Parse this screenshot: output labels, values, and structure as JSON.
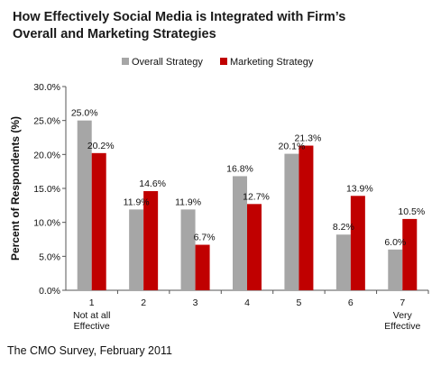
{
  "title_line1": "How Effectively Social Media is Integrated with Firm’s",
  "title_line2": "Overall and Marketing Strategies",
  "source": "The CMO Survey, February 2011",
  "colors": {
    "overall": "#a6a6a6",
    "marketing": "#c00000",
    "border": "#555555"
  },
  "chart_data": {
    "type": "bar",
    "title": "How Effectively Social Media is Integrated with Firm’s Overall and Marketing Strategies",
    "categories": [
      "1",
      "2",
      "3",
      "4",
      "5",
      "6",
      "7"
    ],
    "category_sublabels": [
      [
        "Not at all",
        "Effective"
      ],
      [],
      [],
      [],
      [],
      [],
      [
        "Very",
        "Effective"
      ]
    ],
    "series": [
      {
        "name": "Overall Strategy",
        "values": [
          25.0,
          11.9,
          11.9,
          16.8,
          20.1,
          8.2,
          6.0
        ],
        "labels": [
          "25.0%",
          "11.9%",
          "11.9%",
          "16.8%",
          "20.1%",
          "8.2%",
          "6.0%"
        ]
      },
      {
        "name": "Marketing Strategy",
        "values": [
          20.2,
          14.6,
          6.7,
          12.7,
          21.3,
          13.9,
          10.5
        ],
        "labels": [
          "20.2%",
          "14.6%",
          "6.7%",
          "12.7%",
          "21.3%",
          "13.9%",
          "10.5%"
        ]
      }
    ],
    "ylabel": "Percent of Respondents (%)",
    "xlabel": "",
    "ylim": [
      0,
      30
    ],
    "yticks": [
      "0.0%",
      "5.0%",
      "10.0%",
      "15.0%",
      "20.0%",
      "25.0%",
      "30.0%"
    ],
    "grid": false,
    "legend_position": "top"
  }
}
